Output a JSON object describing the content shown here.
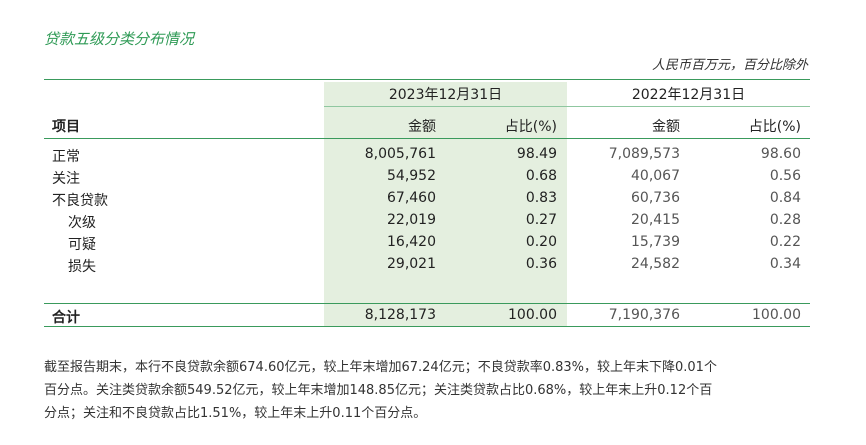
{
  "title": "贷款五级分类分布情况",
  "unit_note": "人民币百万元，百分比除外",
  "header": {
    "period_2023": "2023年12月31日",
    "period_2022": "2022年12月31日",
    "item": "项目",
    "amount_2023": "金额",
    "ratio_2023": "占比(%)",
    "amount_2022": "金额",
    "ratio_2022": "占比(%)"
  },
  "rows": [
    {
      "label": "正常",
      "amount_2023": "8,005,761",
      "ratio_2023": "98.49",
      "amount_2022": "7,089,573",
      "ratio_2022": "98.60"
    },
    {
      "label": "关注",
      "amount_2023": "54,952",
      "ratio_2023": "0.68",
      "amount_2022": "40,067",
      "ratio_2022": "0.56"
    },
    {
      "label": "不良贷款",
      "amount_2023": "67,460",
      "ratio_2023": "0.83",
      "amount_2022": "60,736",
      "ratio_2022": "0.84"
    },
    {
      "label": "次级",
      "amount_2023": "22,019",
      "ratio_2023": "0.27",
      "amount_2022": "20,415",
      "ratio_2022": "0.28"
    },
    {
      "label": "可疑",
      "amount_2023": "16,420",
      "ratio_2023": "0.20",
      "amount_2022": "15,739",
      "ratio_2022": "0.22"
    },
    {
      "label": "损失",
      "amount_2023": "29,021",
      "ratio_2023": "0.36",
      "amount_2022": "24,582",
      "ratio_2022": "0.34"
    }
  ],
  "total": {
    "label": "合计",
    "amount_2023": "8,128,173",
    "ratio_2023": "100.00",
    "amount_2022": "7,190,376",
    "ratio_2022": "100.00"
  },
  "paragraph": {
    "line1": "截至报告期末，本行不良贷款余额674.60亿元，较上年末增加67.24亿元；不良贷款率0.83%，较上年末下降0.01个",
    "line2": "百分点。关注类贷款余额549.52亿元，较上年末增加148.85亿元；关注类贷款占比0.68%，较上年末上升0.12个百",
    "line3": "分点；关注和不良贷款占比1.51%，较上年末上升0.11个百分点。"
  }
}
